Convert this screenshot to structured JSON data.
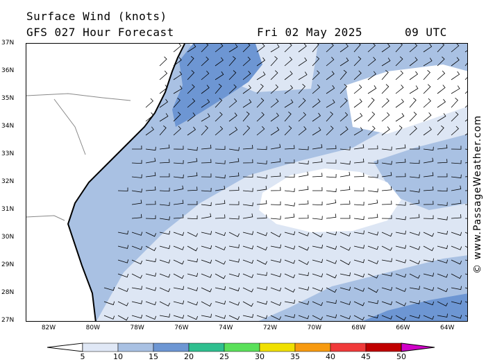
{
  "header": {
    "title": "Surface Wind (knots)",
    "subtitle": "GFS 027 Hour Forecast",
    "date": "Fri 02 May 2025",
    "time": "09 UTC"
  },
  "credit": "© www.PassageWeather.com",
  "map": {
    "lat_labels": [
      "37N",
      "36N",
      "35N",
      "34N",
      "33N",
      "32N",
      "31N",
      "30N",
      "29N",
      "28N",
      "27N"
    ],
    "lon_labels": [
      "82W",
      "80W",
      "78W",
      "76W",
      "74W",
      "72W",
      "70W",
      "68W",
      "66W",
      "64W"
    ],
    "colors": {
      "land": "#ffffff",
      "calm": "#ffffff",
      "band_5_10": "#dde6f4",
      "band_10_15": "#a9c1e3",
      "band_15_20": "#6d96d3",
      "coast": "#000000",
      "border": "#888888"
    }
  },
  "legend": {
    "labels": [
      "5",
      "10",
      "15",
      "20",
      "25",
      "30",
      "35",
      "40",
      "45",
      "50"
    ],
    "colors": [
      "#e0e8f6",
      "#a9c1e3",
      "#6d96d3",
      "#2fbf8f",
      "#5ae05a",
      "#f0e000",
      "#f79a10",
      "#f03a3a",
      "#c00000",
      "#d000c8"
    ]
  }
}
